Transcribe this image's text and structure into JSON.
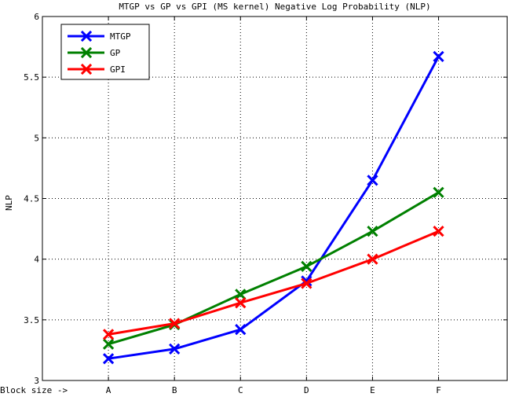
{
  "chart_data": {
    "type": "line",
    "title": "MTGP vs GP vs GPI (MS kernel) Negative Log Probability (NLP)",
    "xlabel": "Block size ->",
    "ylabel": "NLP",
    "categories": [
      "A",
      "B",
      "C",
      "D",
      "E",
      "F"
    ],
    "ylim": [
      3,
      6
    ],
    "yticks": [
      "3",
      "3.5",
      "4",
      "4.5",
      "5",
      "5.5",
      "6"
    ],
    "grid": true,
    "legend_position": "top-left",
    "series": [
      {
        "name": "MTGP",
        "color": "#0000ff",
        "x": [
          1,
          2,
          3,
          4,
          5,
          6
        ],
        "values": [
          3.18,
          3.26,
          3.42,
          3.82,
          4.65,
          5.67
        ]
      },
      {
        "name": "GP",
        "color": "#008000",
        "x": [
          1,
          2,
          3,
          4,
          5,
          6
        ],
        "values": [
          3.3,
          3.46,
          3.71,
          3.94,
          4.23,
          4.55
        ]
      },
      {
        "name": "GPI",
        "color": "#ff0000",
        "x": [
          1,
          2,
          3,
          4,
          5,
          6
        ],
        "values": [
          3.38,
          3.47,
          3.64,
          3.8,
          4.0,
          4.23
        ]
      }
    ]
  }
}
